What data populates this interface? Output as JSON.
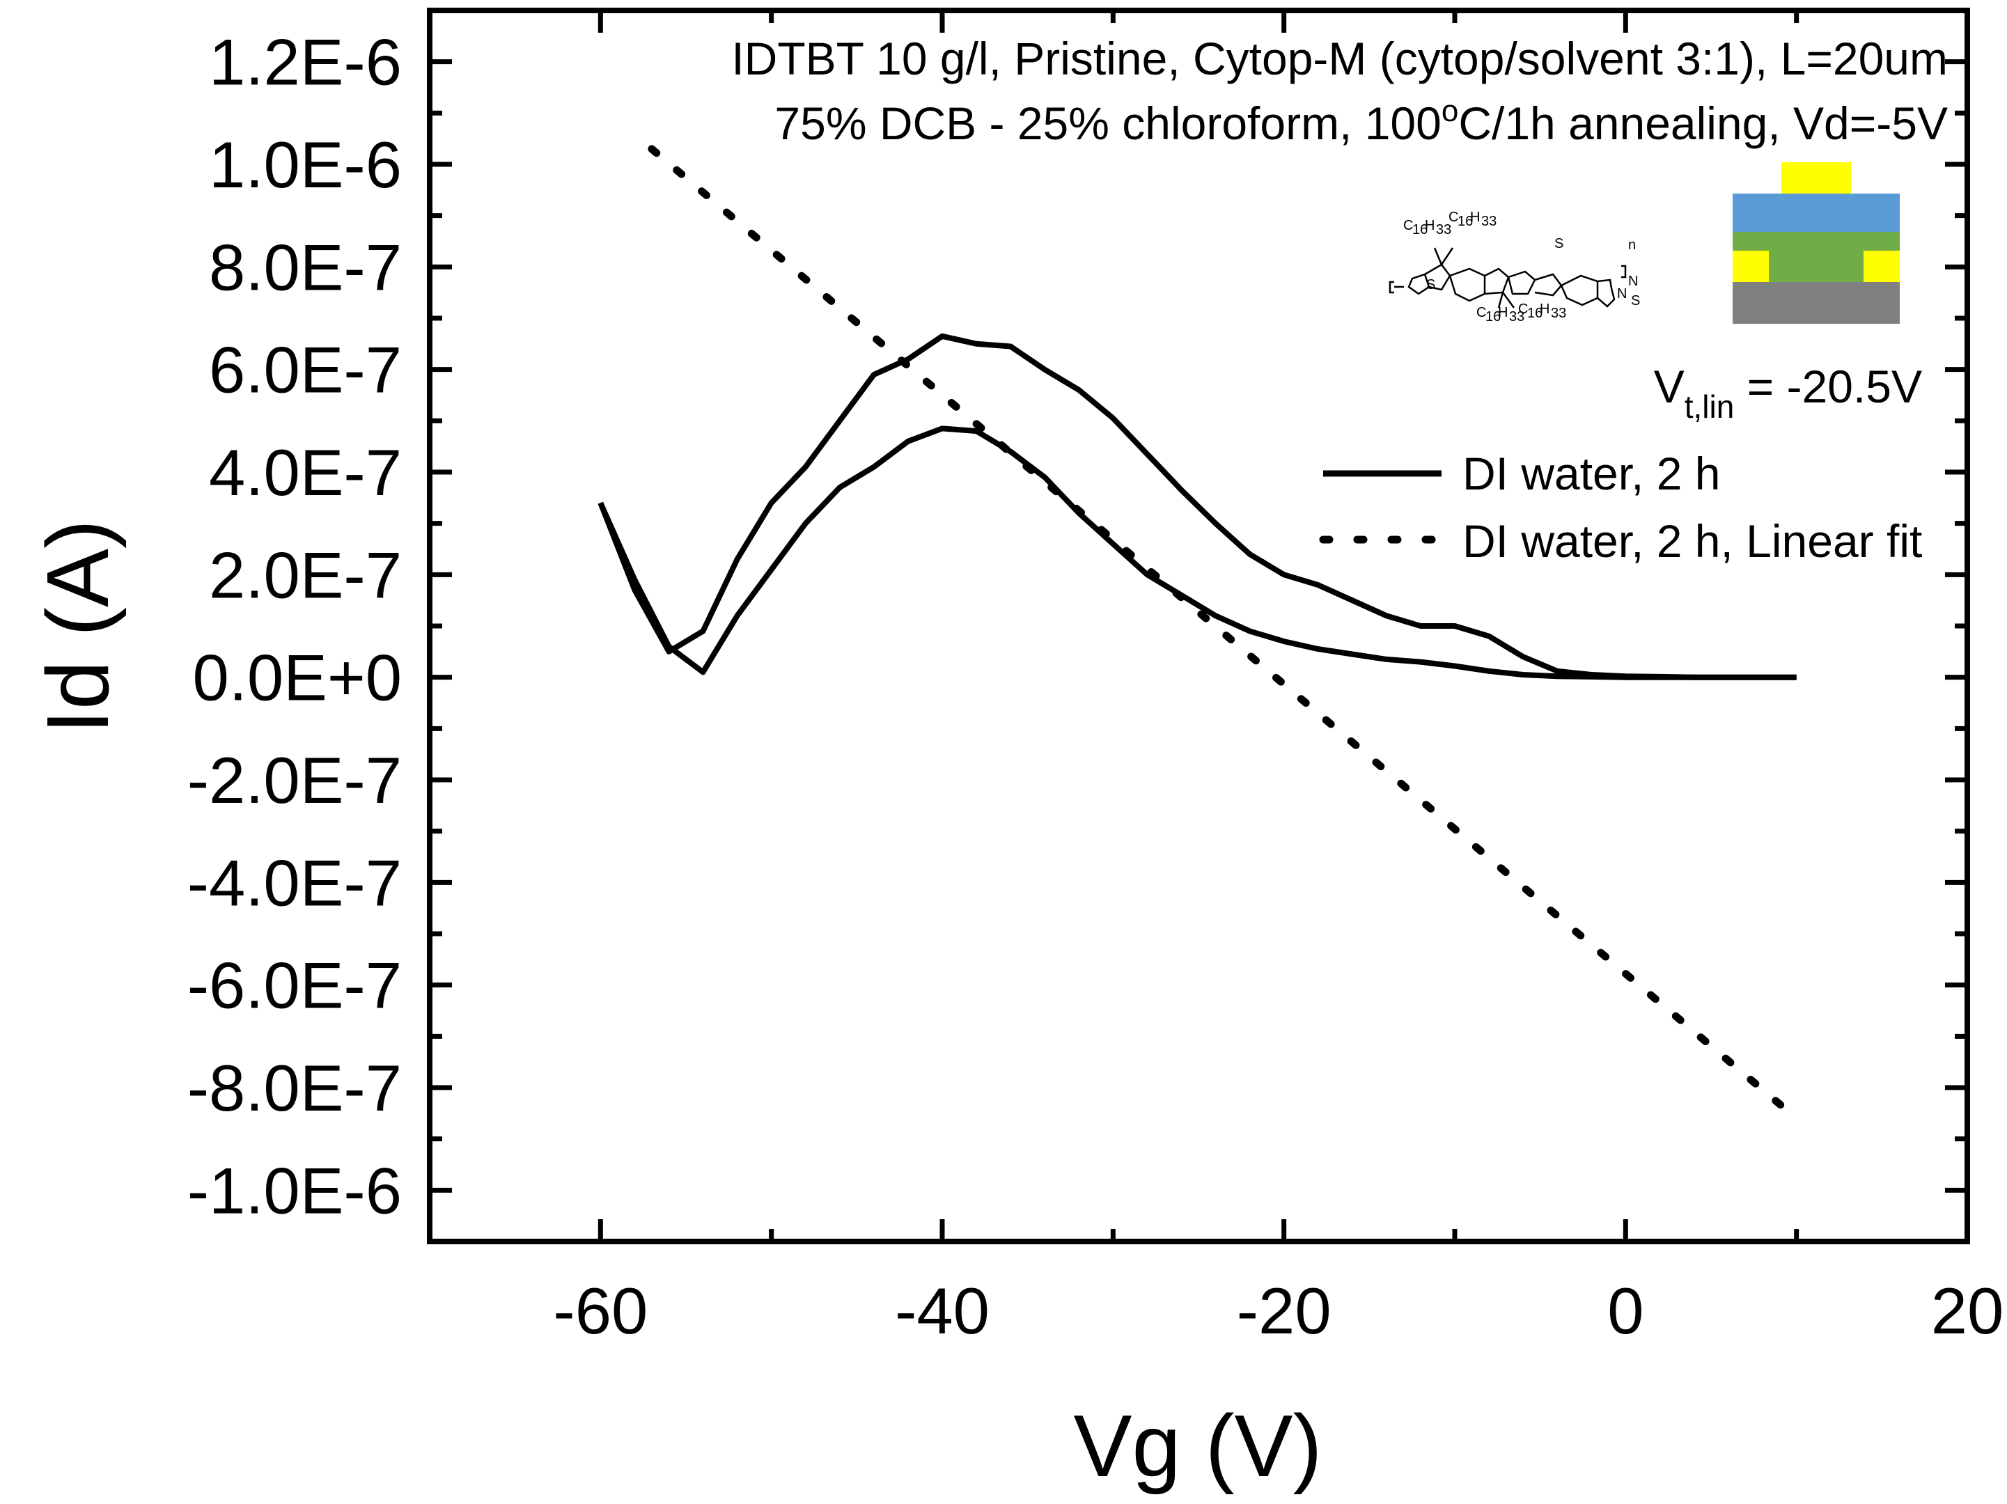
{
  "chart_data": {
    "type": "line",
    "title_lines": [
      "IDTBT 10 g/l, Pristine, Cytop-M (cytop/solvent 3:1), L=20um",
      "75% DCB - 25% chloroform, 100",
      "o",
      "C/1h annealing, Vd=-5V"
    ],
    "xlabel": "Vg (V)",
    "ylabel": "Id (A)",
    "xlim": [
      -70,
      20
    ],
    "ylim": [
      -1.1e-06,
      1.3e-06
    ],
    "x_ticks": [
      -60,
      -40,
      -20,
      0,
      20
    ],
    "x_tick_labels": [
      "-60",
      "-40",
      "-20",
      "0",
      "20"
    ],
    "y_ticks": [
      1.2e-06,
      1e-06,
      8e-07,
      6e-07,
      4e-07,
      2e-07,
      0,
      -2e-07,
      -4e-07,
      -6e-07,
      -8e-07,
      -1e-06
    ],
    "y_tick_labels": [
      "1.2E-6",
      "1.0E-6",
      "8.0E-7",
      "6.0E-7",
      "4.0E-7",
      "2.0E-7",
      "0.0E+0",
      "-2.0E-7",
      "-4.0E-7",
      "-6.0E-7",
      "-8.0E-7",
      "-1.0E-6"
    ],
    "grid": false,
    "legend_position": "right",
    "annotation": {
      "base": "V",
      "subscript": "t,lin",
      "rest": " = -20.5V"
    },
    "molecule_labels": [
      "C",
      "16",
      "H",
      "33",
      "S",
      "N",
      "n"
    ],
    "series": [
      {
        "name": "DI water, 2 h",
        "style": "solid",
        "x": [
          -60,
          -58,
          -56,
          -54,
          -52,
          -50,
          -48,
          -46,
          -44,
          -42,
          -40,
          -38,
          -36,
          -34,
          -32,
          -30,
          -28,
          -26,
          -24,
          -22,
          -20,
          -18,
          -16,
          -14,
          -12,
          -10,
          -8,
          -6,
          -4,
          -2,
          0,
          2,
          4,
          6,
          8,
          10
        ],
        "y": [
          3.4e-07,
          1.9e-07,
          6e-08,
          1e-08,
          1.2e-07,
          2.1e-07,
          3e-07,
          3.7e-07,
          4.1e-07,
          4.6e-07,
          4.85e-07,
          4.8e-07,
          4.4e-07,
          3.9e-07,
          3.2e-07,
          2.6e-07,
          2e-07,
          1.6e-07,
          1.2e-07,
          9e-08,
          7e-08,
          5.5e-08,
          4.5e-08,
          3.5e-08,
          3e-08,
          2.2e-08,
          1.2e-08,
          5e-09,
          2e-09,
          1e-09,
          0,
          0,
          0,
          0,
          0,
          0
        ]
      },
      {
        "name": "DI water, 2 h",
        "style": "solid",
        "x": [
          -60,
          -58,
          -56,
          -54,
          -52,
          -50,
          -48,
          -46,
          -44,
          -42,
          -40,
          -38,
          -36,
          -34,
          -32,
          -30,
          -28,
          -26,
          -24,
          -22,
          -20,
          -18,
          -16,
          -14,
          -12,
          -10,
          -8,
          -6,
          -4,
          -2,
          0,
          2,
          4,
          6,
          8,
          10
        ],
        "y": [
          3.4e-07,
          1.7e-07,
          5e-08,
          9e-08,
          2.3e-07,
          3.4e-07,
          4.1e-07,
          5e-07,
          5.9e-07,
          6.2e-07,
          6.65e-07,
          6.5e-07,
          6.45e-07,
          6e-07,
          5.6e-07,
          5.05e-07,
          4.35e-07,
          3.65e-07,
          3e-07,
          2.4e-07,
          2e-07,
          1.8e-07,
          1.5e-07,
          1.2e-07,
          1e-07,
          1e-07,
          8e-08,
          4e-08,
          1.2e-08,
          5e-09,
          2e-09,
          1e-09,
          0,
          0,
          0,
          0
        ]
      },
      {
        "name": "DI water, 2 h, Linear fit",
        "style": "dotted",
        "x": [
          -57,
          10
        ],
        "y": [
          1.03e-06,
          -8.6e-07
        ]
      }
    ],
    "legend": [
      {
        "label": "DI water, 2 h",
        "style": "solid"
      },
      {
        "label": "DI water, 2 h, Linear fit",
        "style": "dotted"
      }
    ],
    "device_stack_colors": {
      "top_contact": "#ffff00",
      "dielectric": "#5b9bd5",
      "semiconductor": "#70ad47",
      "electrodes": "#ffff00",
      "substrate": "#808080"
    }
  }
}
